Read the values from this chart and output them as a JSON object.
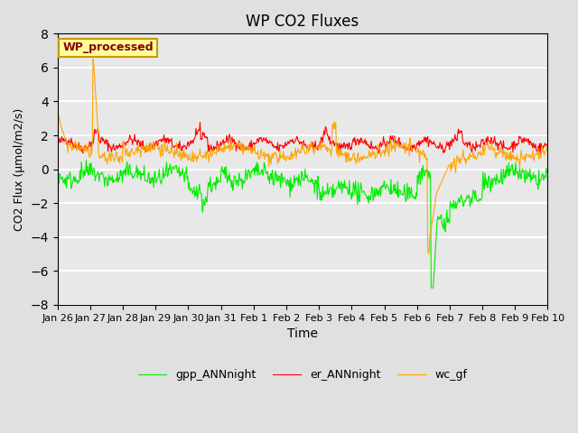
{
  "title": "WP CO2 Fluxes",
  "xlabel": "Time",
  "ylabel": "CO2 Flux (μmol/m2/s)",
  "ylim": [
    -8,
    8
  ],
  "yticks": [
    -8,
    -6,
    -4,
    -2,
    0,
    2,
    4,
    6,
    8
  ],
  "xtick_labels": [
    "Jan 26",
    "Jan 27",
    "Jan 28",
    "Jan 29",
    "Jan 30",
    "Jan 31",
    "Feb 1",
    "Feb 2",
    "Feb 3",
    "Feb 4",
    "Feb 5",
    "Feb 6",
    "Feb 7",
    "Feb 8",
    "Feb 9",
    "Feb 10"
  ],
  "legend_labels": [
    "gpp_ANNnight",
    "er_ANNnight",
    "wc_gf"
  ],
  "line_colors": [
    "#00ee00",
    "#ff0000",
    "#ffa500"
  ],
  "watermark_text": "WP_processed",
  "watermark_color": "#880000",
  "watermark_bg": "#ffff99",
  "fig_bg": "#e0e0e0",
  "plot_bg": "#e8e8e8",
  "n_per_day": 48,
  "n_days": 15
}
